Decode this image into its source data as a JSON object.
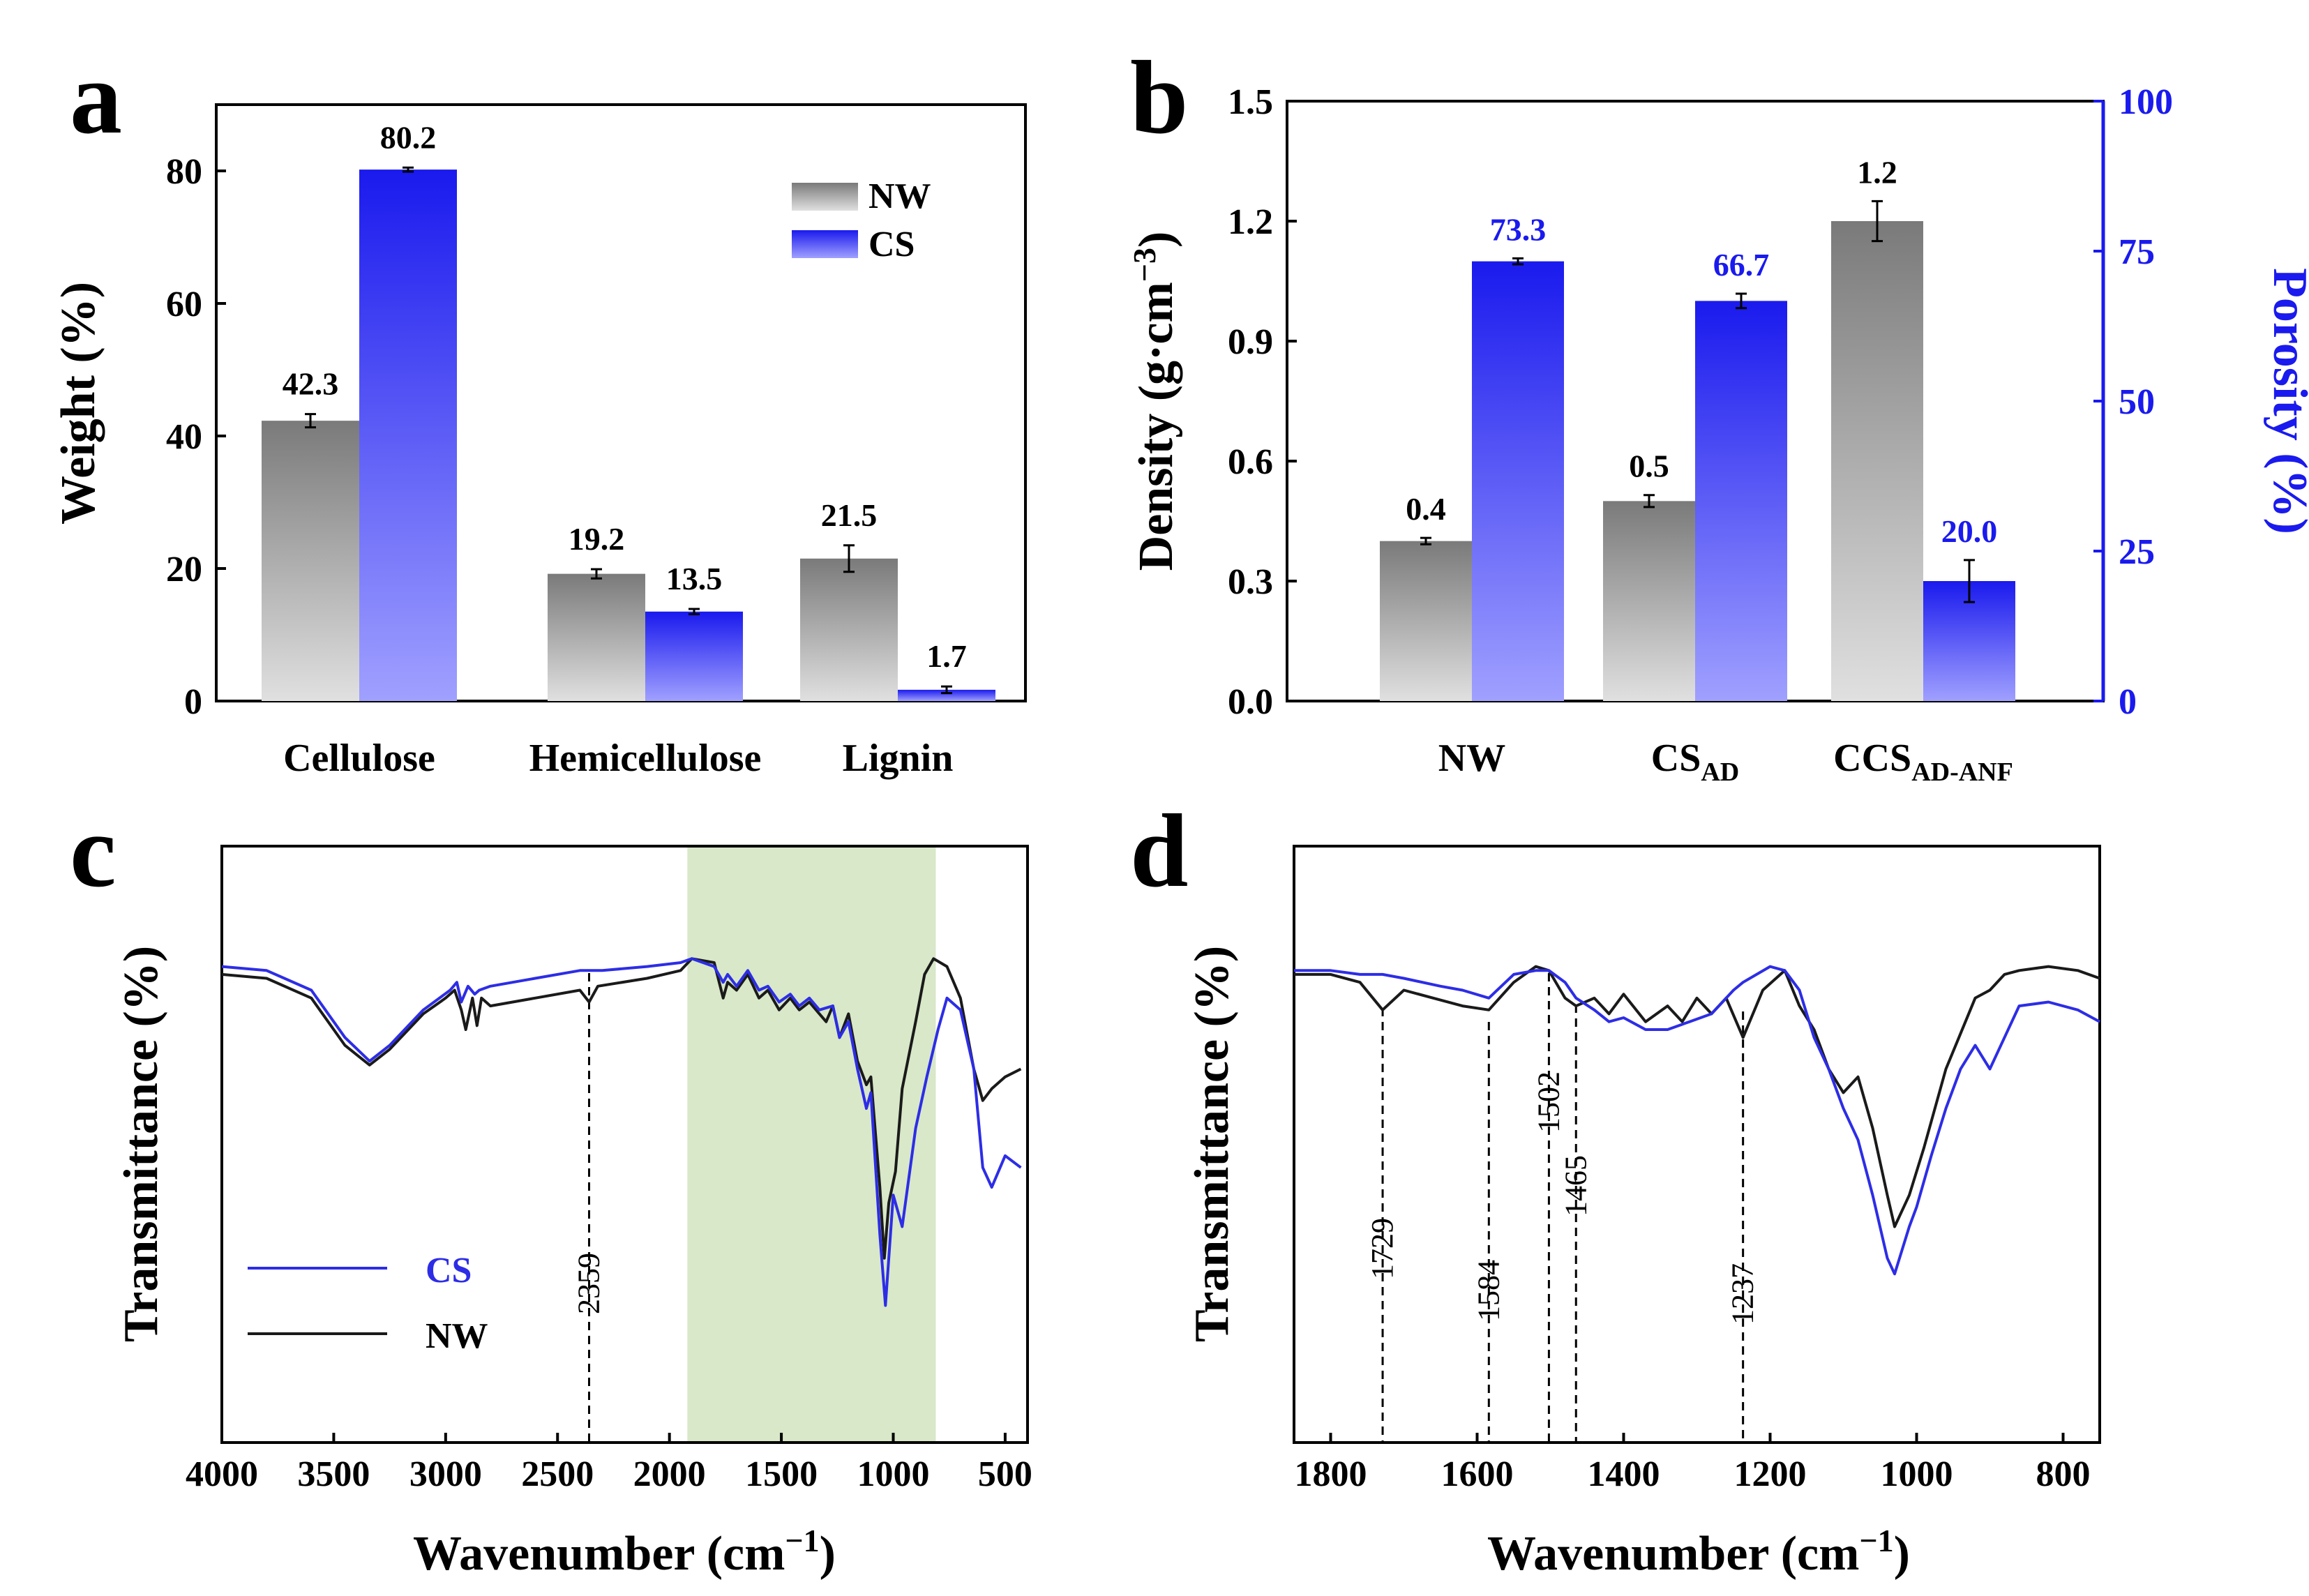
{
  "colors": {
    "nw": "#1a1a1a",
    "cs": "#2d2de6",
    "nw_bar_top": "#7a7a7a",
    "nw_bar_bottom": "#e0e0e0",
    "cs_bar_top": "#1a1aee",
    "cs_bar_bottom": "#a0a0ff",
    "highlight": "#d8e8c8",
    "porosity_axis": "#1a1aee"
  },
  "chart_data": [
    {
      "panel": "a",
      "type": "bar",
      "categories": [
        "Cellulose",
        "Hemicellulose",
        "Lignin"
      ],
      "series": [
        {
          "name": "NW",
          "values": [
            42.3,
            19.2,
            21.5
          ],
          "errors": [
            1.0,
            0.7,
            2.0
          ]
        },
        {
          "name": "CS",
          "values": [
            80.2,
            13.5,
            1.7
          ],
          "errors": [
            0.3,
            0.4,
            0.5
          ]
        }
      ],
      "value_labels": {
        "NW": [
          "42.3",
          "19.2",
          "21.5"
        ],
        "CS": [
          "80.2",
          "13.5",
          "1.7"
        ]
      },
      "ylabel": "Weight (%)",
      "ylim": [
        0,
        90
      ],
      "yticks": [
        0,
        20,
        40,
        60,
        80
      ],
      "legend": "top-right"
    },
    {
      "panel": "b",
      "type": "bar",
      "categories": [
        "NW",
        "CS",
        "CCS"
      ],
      "category_subscripts": [
        "",
        "AD",
        "AD-ANF"
      ],
      "series": [
        {
          "name": "Density",
          "axis": "left",
          "values": [
            0.4,
            0.5,
            1.2
          ],
          "errors": [
            0.008,
            0.015,
            0.05
          ],
          "labels": [
            "0.4",
            "0.5",
            "1.2"
          ]
        },
        {
          "name": "Porosity",
          "axis": "right",
          "values": [
            73.3,
            66.7,
            20.0
          ],
          "errors": [
            0.5,
            1.2,
            3.5
          ],
          "labels": [
            "73.3",
            "66.7",
            "20.0"
          ]
        }
      ],
      "ylabel_left": "Density (g·cm",
      "ylabel_left_sup": "−3",
      "ylabel_left_end": ")",
      "ylabel_right": "Porosity (%)",
      "ylim_left": [
        0,
        1.5
      ],
      "ylim_right": [
        0,
        100
      ],
      "yticks_left": [
        "0.0",
        "0.3",
        "0.6",
        "0.9",
        "1.2",
        "1.5"
      ],
      "yticks_right": [
        "0",
        "25",
        "50",
        "75",
        "100"
      ]
    },
    {
      "panel": "c",
      "type": "line",
      "xlabel": "Wavenumber (cm",
      "xlabel_sup": "−1",
      "xlabel_end": ")",
      "ylabel": "Transmittance (%)",
      "xlim": [
        4000,
        400
      ],
      "xticks": [
        4000,
        3500,
        3000,
        2500,
        2000,
        1500,
        1000,
        500
      ],
      "highlight_range": [
        1920,
        810
      ],
      "annotations": [
        {
          "x": 2359,
          "label": "2359"
        }
      ],
      "legend_labels": [
        "CS",
        "NW"
      ],
      "series": [
        {
          "name": "CS",
          "x": [
            4000,
            3800,
            3600,
            3450,
            3340,
            3250,
            3100,
            2980,
            2950,
            2930,
            2900,
            2870,
            2850,
            2800,
            2600,
            2400,
            2359,
            2300,
            2100,
            1950,
            1900,
            1800,
            1760,
            1740,
            1700,
            1650,
            1600,
            1560,
            1510,
            1460,
            1420,
            1375,
            1330,
            1270,
            1240,
            1200,
            1160,
            1120,
            1100,
            1060,
            1035,
            1000,
            960,
            900,
            850,
            800,
            760,
            700,
            640,
            600,
            560,
            500,
            430
          ],
          "y": [
            0.04,
            0.05,
            0.1,
            0.22,
            0.28,
            0.24,
            0.15,
            0.1,
            0.08,
            0.13,
            0.09,
            0.11,
            0.1,
            0.09,
            0.07,
            0.05,
            0.05,
            0.05,
            0.04,
            0.03,
            0.02,
            0.04,
            0.08,
            0.06,
            0.09,
            0.05,
            0.1,
            0.09,
            0.13,
            0.11,
            0.14,
            0.12,
            0.15,
            0.14,
            0.22,
            0.18,
            0.3,
            0.4,
            0.36,
            0.72,
            0.9,
            0.62,
            0.7,
            0.45,
            0.32,
            0.2,
            0.12,
            0.15,
            0.3,
            0.55,
            0.6,
            0.52,
            0.55
          ]
        },
        {
          "name": "NW",
          "x": [
            4000,
            3800,
            3600,
            3450,
            3340,
            3250,
            3100,
            3000,
            2960,
            2930,
            2910,
            2880,
            2860,
            2840,
            2800,
            2600,
            2400,
            2359,
            2320,
            2100,
            1950,
            1900,
            1800,
            1760,
            1740,
            1700,
            1650,
            1600,
            1560,
            1510,
            1460,
            1420,
            1375,
            1330,
            1300,
            1270,
            1240,
            1200,
            1160,
            1120,
            1100,
            1060,
            1040,
            1020,
            990,
            960,
            900,
            860,
            820,
            760,
            700,
            640,
            600,
            560,
            500,
            430
          ],
          "y": [
            0.06,
            0.07,
            0.12,
            0.24,
            0.29,
            0.25,
            0.16,
            0.12,
            0.1,
            0.15,
            0.2,
            0.12,
            0.19,
            0.12,
            0.14,
            0.12,
            0.1,
            0.13,
            0.09,
            0.07,
            0.05,
            0.02,
            0.03,
            0.12,
            0.08,
            0.1,
            0.06,
            0.12,
            0.1,
            0.15,
            0.12,
            0.15,
            0.13,
            0.16,
            0.18,
            0.14,
            0.22,
            0.16,
            0.28,
            0.34,
            0.32,
            0.6,
            0.78,
            0.64,
            0.56,
            0.35,
            0.18,
            0.06,
            0.02,
            0.04,
            0.12,
            0.3,
            0.38,
            0.35,
            0.32,
            0.3
          ]
        }
      ]
    },
    {
      "panel": "d",
      "type": "line",
      "xlabel": "Wavenumber (cm",
      "xlabel_sup": "−1",
      "xlabel_end": ")",
      "ylabel": "Transmittance (%)",
      "xlim": [
        1850,
        750
      ],
      "xticks": [
        1800,
        1600,
        1400,
        1200,
        1000,
        800
      ],
      "annotations": [
        {
          "x": 1729,
          "label": "1729"
        },
        {
          "x": 1584,
          "label": "1584"
        },
        {
          "x": 1502,
          "label": "1502"
        },
        {
          "x": 1465,
          "label": "1465"
        },
        {
          "x": 1237,
          "label": "1237"
        }
      ],
      "series": [
        {
          "name": "CS",
          "x": [
            1850,
            1800,
            1760,
            1729,
            1700,
            1650,
            1620,
            1584,
            1550,
            1520,
            1502,
            1480,
            1465,
            1440,
            1420,
            1400,
            1370,
            1340,
            1310,
            1280,
            1250,
            1237,
            1200,
            1180,
            1160,
            1140,
            1120,
            1100,
            1080,
            1060,
            1040,
            1030,
            1010,
            1000,
            980,
            960,
            940,
            920,
            900,
            880,
            860,
            820,
            780,
            750
          ],
          "y": [
            0.05,
            0.05,
            0.06,
            0.06,
            0.07,
            0.09,
            0.1,
            0.12,
            0.06,
            0.05,
            0.05,
            0.08,
            0.12,
            0.15,
            0.18,
            0.17,
            0.2,
            0.2,
            0.18,
            0.16,
            0.1,
            0.08,
            0.04,
            0.05,
            0.1,
            0.22,
            0.3,
            0.4,
            0.48,
            0.62,
            0.78,
            0.82,
            0.7,
            0.65,
            0.52,
            0.4,
            0.3,
            0.24,
            0.3,
            0.22,
            0.14,
            0.13,
            0.15,
            0.18
          ]
        },
        {
          "name": "NW",
          "x": [
            1850,
            1800,
            1760,
            1729,
            1700,
            1660,
            1620,
            1584,
            1550,
            1520,
            1502,
            1480,
            1465,
            1440,
            1420,
            1400,
            1370,
            1340,
            1320,
            1300,
            1280,
            1260,
            1237,
            1210,
            1180,
            1160,
            1140,
            1120,
            1100,
            1080,
            1060,
            1040,
            1030,
            1010,
            990,
            960,
            920,
            900,
            880,
            860,
            820,
            780,
            750
          ],
          "y": [
            0.06,
            0.06,
            0.08,
            0.15,
            0.1,
            0.12,
            0.14,
            0.15,
            0.08,
            0.04,
            0.05,
            0.12,
            0.14,
            0.12,
            0.16,
            0.11,
            0.18,
            0.14,
            0.18,
            0.12,
            0.16,
            0.12,
            0.22,
            0.1,
            0.05,
            0.14,
            0.2,
            0.3,
            0.36,
            0.32,
            0.45,
            0.62,
            0.7,
            0.62,
            0.5,
            0.3,
            0.12,
            0.1,
            0.06,
            0.05,
            0.04,
            0.05,
            0.07
          ]
        }
      ]
    }
  ],
  "panel_labels": [
    "a",
    "b",
    "c",
    "d"
  ]
}
